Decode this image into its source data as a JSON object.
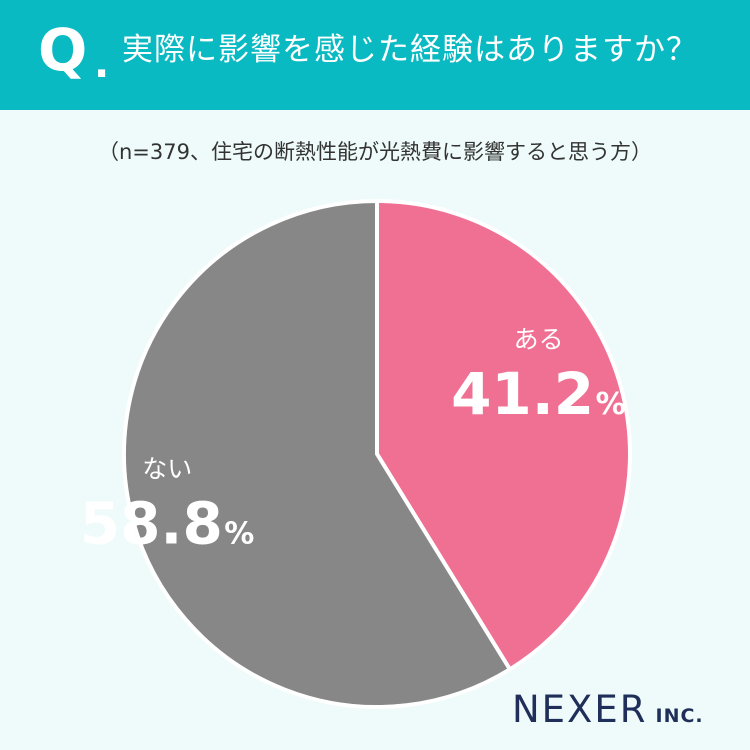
{
  "header": {
    "q_mark": "Q",
    "q_dot": ".",
    "question": "実際に影響を感じた経験はありますか？"
  },
  "subtitle": "（n=379、住宅の断熱性能が光熱費に影響すると思う方）",
  "chart_data": {
    "type": "pie",
    "title": "実際に影響を感じた経験はありますか？",
    "subtitle": "（n=379、住宅の断熱性能が光熱費に影響すると思う方）",
    "categories": [
      "ある",
      "ない"
    ],
    "values": [
      41.2,
      58.8
    ],
    "value_labels": [
      "41.2",
      "58.8"
    ],
    "unit": "%",
    "colors": [
      "#f07093",
      "#878787"
    ],
    "start": "12 o'clock",
    "direction": "clockwise"
  },
  "logo": {
    "main": "NEXER",
    "sub": "INC."
  },
  "colors": {
    "header": "#0abac2",
    "background": "#eefbfa",
    "logo": "#1f2f5a"
  }
}
